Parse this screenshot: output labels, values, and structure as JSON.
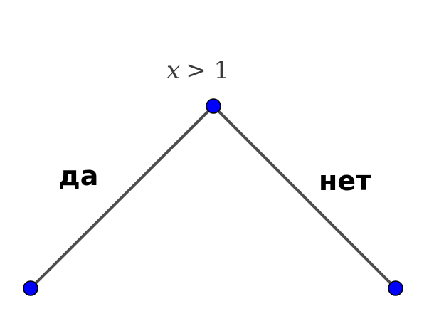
{
  "condition": {
    "variable": "x",
    "relation": "> 1"
  },
  "branches": {
    "yes_label": "да",
    "no_label": "нет"
  },
  "colors": {
    "edge": "#4d4d4d",
    "node_fill": "#0000ff",
    "node_stroke": "#000000"
  }
}
